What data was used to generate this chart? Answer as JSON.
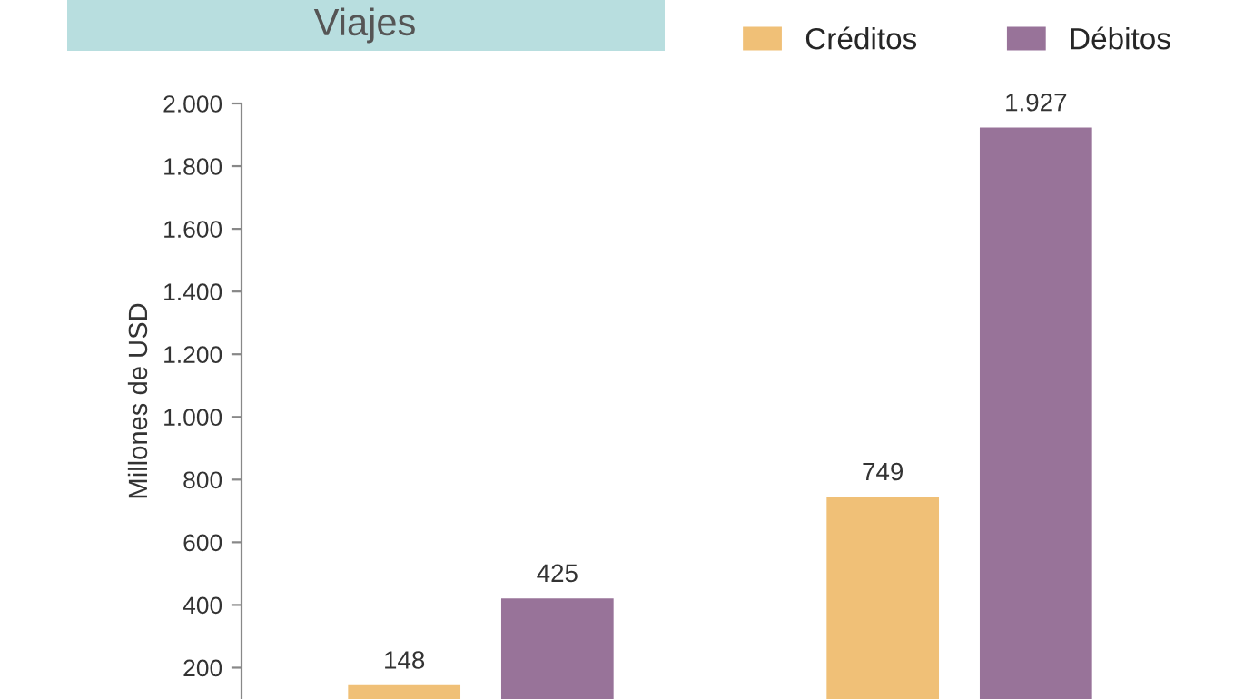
{
  "chart_data": {
    "type": "bar",
    "title": "Viajes",
    "ylabel": "Millones de USD",
    "categories": [
      null,
      null
    ],
    "series": [
      {
        "name": "Créditos",
        "color": "#f0c077",
        "values": [
          148,
          749
        ],
        "value_labels": [
          "148",
          "749"
        ]
      },
      {
        "name": "Débitos",
        "color": "#987399",
        "values": [
          425,
          1927
        ],
        "value_labels": [
          "425",
          "1.927"
        ]
      }
    ],
    "ylim": [
      100,
      2000
    ],
    "yticks": [
      {
        "value": 200,
        "label": "200"
      },
      {
        "value": 400,
        "label": "400"
      },
      {
        "value": 600,
        "label": "600"
      },
      {
        "value": 800,
        "label": "800"
      },
      {
        "value": 1000,
        "label": "1.000"
      },
      {
        "value": 1200,
        "label": "1.200"
      },
      {
        "value": 1400,
        "label": "1.400"
      },
      {
        "value": 1600,
        "label": "1.600"
      },
      {
        "value": 1800,
        "label": "1.800"
      },
      {
        "value": 2000,
        "label": "2.000"
      }
    ],
    "tick_labels": "y",
    "grid": false,
    "legend": "top right"
  }
}
